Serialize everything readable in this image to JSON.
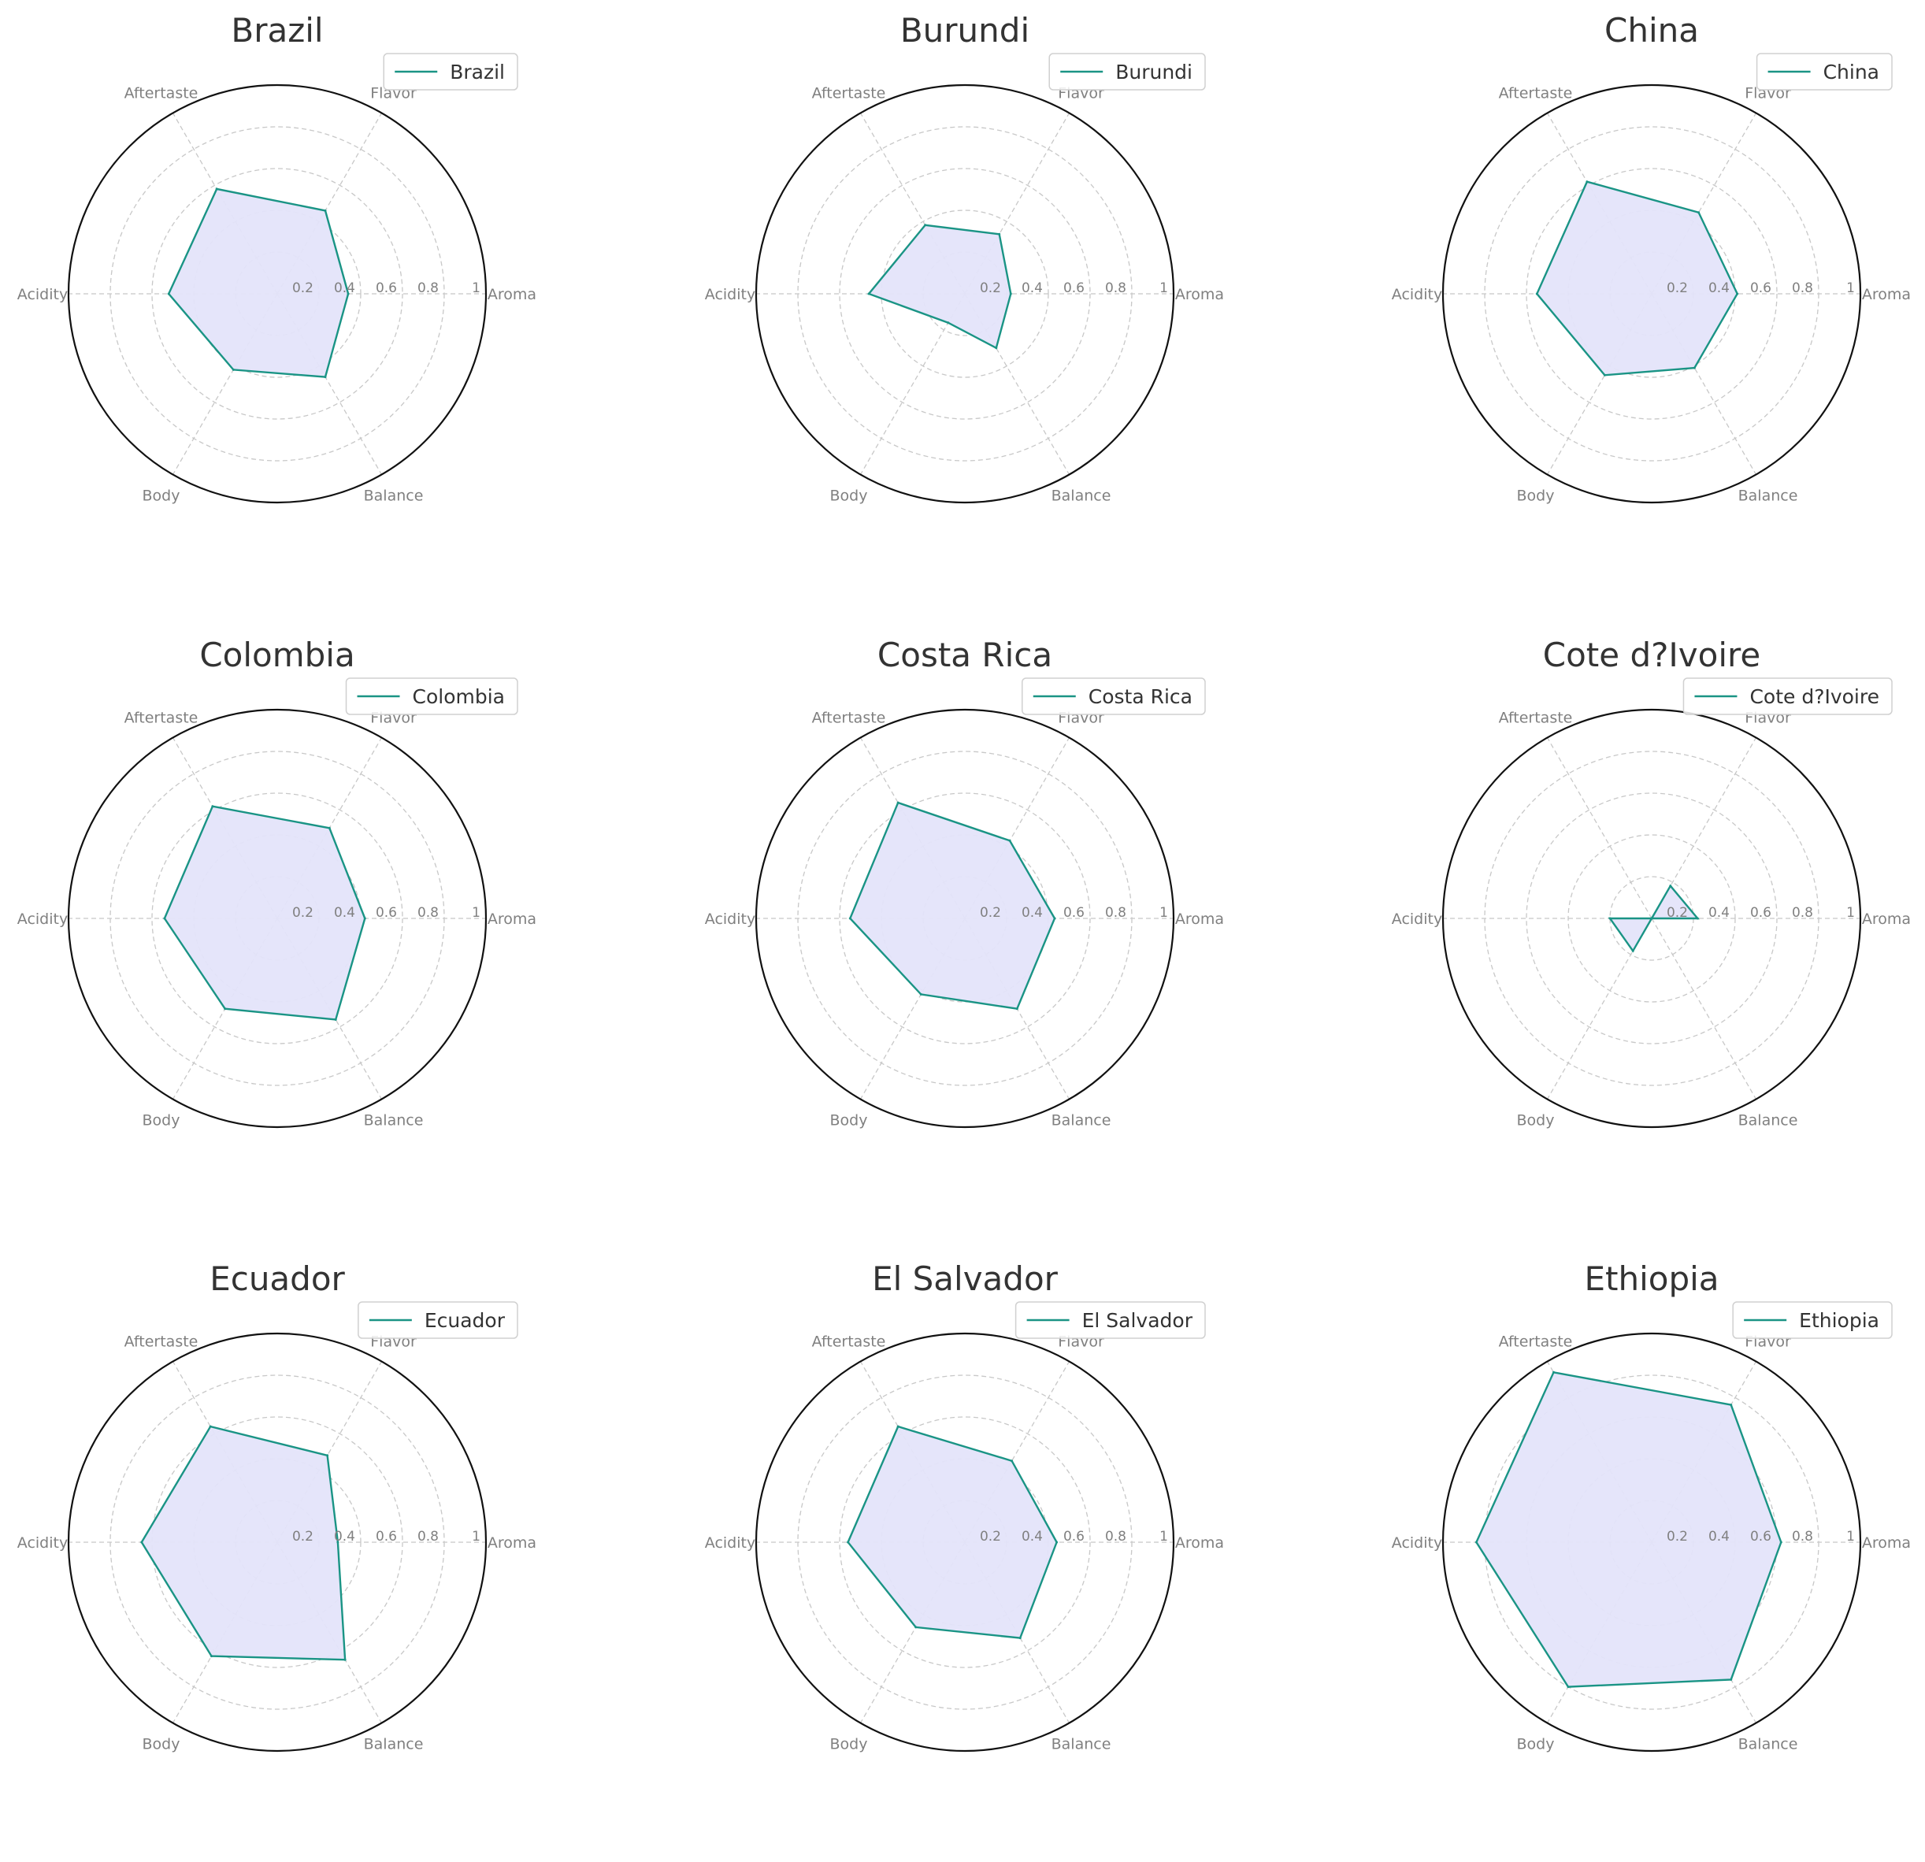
{
  "colors": {
    "line": "#1a9485",
    "fill": "#e4e4fa",
    "grid": "#c8c8c8",
    "frame": "#111111",
    "label": "#808080",
    "title": "#333333"
  },
  "chart_data": [
    {
      "type": "radar",
      "title": "Brazil",
      "axes": [
        "Aroma",
        "Flavor",
        "Aftertaste",
        "Acidity",
        "Body",
        "Balance"
      ],
      "ticks": [
        "0.2",
        "0.4",
        "0.6",
        "0.8",
        "1"
      ],
      "rlim": [
        0,
        1
      ],
      "grid": true,
      "legend_position": "top-right",
      "series": [
        {
          "name": "Brazil",
          "values": [
            0.34,
            0.46,
            0.58,
            0.52,
            0.42,
            0.46
          ]
        }
      ]
    },
    {
      "type": "radar",
      "title": "Burundi",
      "axes": [
        "Aroma",
        "Flavor",
        "Aftertaste",
        "Acidity",
        "Body",
        "Balance"
      ],
      "ticks": [
        "0.2",
        "0.4",
        "0.6",
        "0.8",
        "1"
      ],
      "rlim": [
        0,
        1
      ],
      "grid": true,
      "legend_position": "top-right",
      "series": [
        {
          "name": "Burundi",
          "values": [
            0.22,
            0.33,
            0.38,
            0.46,
            0.16,
            0.3
          ]
        }
      ]
    },
    {
      "type": "radar",
      "title": "China",
      "axes": [
        "Aroma",
        "Flavor",
        "Aftertaste",
        "Acidity",
        "Body",
        "Balance"
      ],
      "ticks": [
        "0.2",
        "0.4",
        "0.6",
        "0.8",
        "1"
      ],
      "rlim": [
        0,
        1
      ],
      "grid": true,
      "legend_position": "top-right",
      "series": [
        {
          "name": "China",
          "values": [
            0.41,
            0.45,
            0.62,
            0.55,
            0.45,
            0.41
          ]
        }
      ]
    },
    {
      "type": "radar",
      "title": "Colombia",
      "axes": [
        "Aroma",
        "Flavor",
        "Aftertaste",
        "Acidity",
        "Body",
        "Balance"
      ],
      "ticks": [
        "0.2",
        "0.4",
        "0.6",
        "0.8",
        "1"
      ],
      "rlim": [
        0,
        1
      ],
      "grid": true,
      "legend_position": "top-right",
      "series": [
        {
          "name": "Colombia",
          "values": [
            0.42,
            0.5,
            0.62,
            0.54,
            0.5,
            0.56
          ]
        }
      ]
    },
    {
      "type": "radar",
      "title": "Costa Rica",
      "axes": [
        "Aroma",
        "Flavor",
        "Aftertaste",
        "Acidity",
        "Body",
        "Balance"
      ],
      "ticks": [
        "0.2",
        "0.4",
        "0.6",
        "0.8",
        "1"
      ],
      "rlim": [
        0,
        1
      ],
      "grid": true,
      "legend_position": "top-right",
      "series": [
        {
          "name": "Costa Rica",
          "values": [
            0.43,
            0.43,
            0.64,
            0.55,
            0.42,
            0.5
          ]
        }
      ]
    },
    {
      "type": "radar",
      "title": "Cote d?Ivoire",
      "axes": [
        "Aroma",
        "Flavor",
        "Aftertaste",
        "Acidity",
        "Body",
        "Balance"
      ],
      "ticks": [
        "0.2",
        "0.4",
        "0.6",
        "0.8",
        "1"
      ],
      "rlim": [
        0,
        1
      ],
      "grid": true,
      "legend_position": "top-right",
      "series": [
        {
          "name": "Cote d?Ivoire",
          "values": [
            0.22,
            0.18,
            0.0,
            0.2,
            0.18,
            0.0
          ]
        }
      ]
    },
    {
      "type": "radar",
      "title": "Ecuador",
      "axes": [
        "Aroma",
        "Flavor",
        "Aftertaste",
        "Acidity",
        "Body",
        "Balance"
      ],
      "ticks": [
        "0.2",
        "0.4",
        "0.6",
        "0.8",
        "1"
      ],
      "rlim": [
        0,
        1
      ],
      "grid": true,
      "legend_position": "top-right",
      "series": [
        {
          "name": "Ecuador",
          "values": [
            0.29,
            0.48,
            0.64,
            0.65,
            0.63,
            0.65
          ]
        }
      ]
    },
    {
      "type": "radar",
      "title": "El Salvador",
      "axes": [
        "Aroma",
        "Flavor",
        "Aftertaste",
        "Acidity",
        "Body",
        "Balance"
      ],
      "ticks": [
        "0.2",
        "0.4",
        "0.6",
        "0.8",
        "1"
      ],
      "rlim": [
        0,
        1
      ],
      "grid": true,
      "legend_position": "top-right",
      "series": [
        {
          "name": "El Salvador",
          "values": [
            0.44,
            0.45,
            0.64,
            0.56,
            0.47,
            0.53
          ]
        }
      ]
    },
    {
      "type": "radar",
      "title": "Ethiopia",
      "axes": [
        "Aroma",
        "Flavor",
        "Aftertaste",
        "Acidity",
        "Body",
        "Balance"
      ],
      "ticks": [
        "0.2",
        "0.4",
        "0.6",
        "0.8",
        "1"
      ],
      "rlim": [
        0,
        1
      ],
      "grid": true,
      "legend_position": "top-right",
      "series": [
        {
          "name": "Ethiopia",
          "values": [
            0.62,
            0.76,
            0.94,
            0.84,
            0.8,
            0.76
          ]
        }
      ]
    }
  ]
}
